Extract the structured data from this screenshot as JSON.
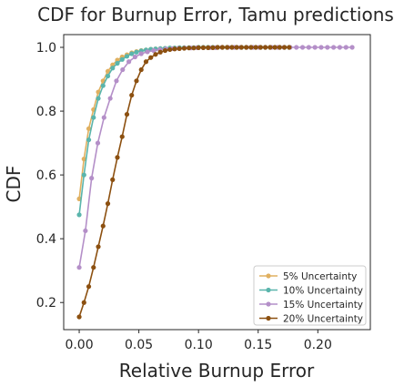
{
  "chart_data": {
    "type": "line",
    "title": "CDF for Burnup Error, Tamu predictions",
    "xlabel": "Relative Burnup Error",
    "ylabel": "CDF",
    "xlim": [
      -0.013,
      0.244
    ],
    "ylim": [
      0.115,
      1.04
    ],
    "xticks": [
      0.0,
      0.05,
      0.1,
      0.15,
      0.2
    ],
    "xtick_labels": [
      "0.00",
      "0.05",
      "0.10",
      "0.15",
      "0.20"
    ],
    "yticks": [
      0.2,
      0.4,
      0.6,
      0.8,
      1.0
    ],
    "ytick_labels": [
      "0.2",
      "0.4",
      "0.6",
      "0.8",
      "1.0"
    ],
    "grid": false,
    "legend_position": "bottom-right",
    "series": [
      {
        "name": "5% Uncertainty",
        "color": "#e0b060",
        "x": [
          0.0,
          0.004,
          0.008,
          0.012,
          0.016,
          0.02,
          0.024,
          0.028,
          0.032,
          0.036,
          0.04,
          0.044,
          0.048,
          0.052,
          0.056,
          0.06,
          0.064,
          0.068,
          0.072,
          0.076,
          0.08,
          0.084,
          0.088,
          0.092,
          0.096,
          0.1,
          0.104,
          0.108,
          0.112,
          0.116,
          0.12,
          0.124,
          0.128,
          0.132,
          0.136,
          0.14,
          0.144,
          0.148,
          0.152,
          0.156,
          0.16,
          0.164,
          0.168,
          0.172,
          0.176
        ],
        "y": [
          0.525,
          0.65,
          0.745,
          0.805,
          0.86,
          0.895,
          0.925,
          0.945,
          0.96,
          0.97,
          0.977,
          0.983,
          0.987,
          0.99,
          0.992,
          0.994,
          0.995,
          0.996,
          0.997,
          0.998,
          0.998,
          0.999,
          0.999,
          0.999,
          0.999,
          1.0,
          1.0,
          1.0,
          1.0,
          1.0,
          1.0,
          1.0,
          1.0,
          1.0,
          1.0,
          1.0,
          1.0,
          1.0,
          1.0,
          1.0,
          1.0,
          1.0,
          1.0,
          1.0,
          1.0
        ]
      },
      {
        "name": "10% Uncertainty",
        "color": "#5ab5ac",
        "x": [
          0.0,
          0.004,
          0.008,
          0.012,
          0.016,
          0.02,
          0.024,
          0.028,
          0.032,
          0.036,
          0.04,
          0.044,
          0.048,
          0.052,
          0.056,
          0.06,
          0.064,
          0.068,
          0.072,
          0.076,
          0.08,
          0.084,
          0.088,
          0.092,
          0.096,
          0.1,
          0.104,
          0.108,
          0.112,
          0.116,
          0.12,
          0.124,
          0.128,
          0.132,
          0.136,
          0.14,
          0.144,
          0.148,
          0.152,
          0.156,
          0.16,
          0.164,
          0.168,
          0.172,
          0.176
        ],
        "y": [
          0.475,
          0.6,
          0.71,
          0.78,
          0.84,
          0.88,
          0.91,
          0.935,
          0.95,
          0.962,
          0.972,
          0.98,
          0.985,
          0.989,
          0.992,
          0.994,
          0.995,
          0.996,
          0.997,
          0.998,
          0.998,
          0.999,
          0.999,
          0.999,
          0.999,
          1.0,
          1.0,
          1.0,
          1.0,
          1.0,
          1.0,
          1.0,
          1.0,
          1.0,
          1.0,
          1.0,
          1.0,
          1.0,
          1.0,
          1.0,
          1.0,
          1.0,
          1.0,
          1.0,
          1.0
        ]
      },
      {
        "name": "15% Uncertainty",
        "color": "#b48fc8",
        "x": [
          0.0,
          0.0052,
          0.0104,
          0.0156,
          0.0208,
          0.026,
          0.0312,
          0.0364,
          0.0416,
          0.0468,
          0.052,
          0.0572,
          0.0624,
          0.0676,
          0.0728,
          0.078,
          0.0832,
          0.0884,
          0.0936,
          0.0988,
          0.104,
          0.1092,
          0.1144,
          0.1196,
          0.1248,
          0.13,
          0.1352,
          0.1404,
          0.1456,
          0.1508,
          0.156,
          0.1612,
          0.1664,
          0.1716,
          0.1768,
          0.182,
          0.1872,
          0.1924,
          0.1976,
          0.2028,
          0.208,
          0.2132,
          0.2184,
          0.2236,
          0.2288
        ],
        "y": [
          0.31,
          0.425,
          0.59,
          0.7,
          0.78,
          0.84,
          0.895,
          0.93,
          0.955,
          0.97,
          0.98,
          0.986,
          0.99,
          0.993,
          0.995,
          0.996,
          0.997,
          0.998,
          0.998,
          0.999,
          0.999,
          0.999,
          0.999,
          1.0,
          1.0,
          1.0,
          1.0,
          1.0,
          1.0,
          1.0,
          1.0,
          1.0,
          1.0,
          1.0,
          1.0,
          1.0,
          1.0,
          1.0,
          1.0,
          1.0,
          1.0,
          1.0,
          1.0,
          1.0,
          1.0
        ]
      },
      {
        "name": "20% Uncertainty",
        "color": "#8c5010",
        "x": [
          0.0,
          0.004,
          0.008,
          0.012,
          0.016,
          0.02,
          0.024,
          0.028,
          0.032,
          0.036,
          0.04,
          0.044,
          0.048,
          0.052,
          0.056,
          0.06,
          0.064,
          0.068,
          0.072,
          0.076,
          0.08,
          0.084,
          0.088,
          0.092,
          0.096,
          0.1,
          0.104,
          0.108,
          0.112,
          0.116,
          0.12,
          0.124,
          0.128,
          0.132,
          0.136,
          0.14,
          0.144,
          0.148,
          0.152,
          0.156,
          0.16,
          0.164,
          0.168,
          0.172,
          0.176
        ],
        "y": [
          0.155,
          0.2,
          0.25,
          0.31,
          0.375,
          0.44,
          0.51,
          0.585,
          0.655,
          0.72,
          0.79,
          0.85,
          0.895,
          0.93,
          0.955,
          0.968,
          0.978,
          0.985,
          0.99,
          0.993,
          0.995,
          0.996,
          0.997,
          0.998,
          0.998,
          0.999,
          0.999,
          0.999,
          0.999,
          1.0,
          1.0,
          1.0,
          1.0,
          1.0,
          1.0,
          1.0,
          1.0,
          1.0,
          1.0,
          1.0,
          1.0,
          1.0,
          1.0,
          1.0,
          1.0
        ]
      }
    ]
  }
}
